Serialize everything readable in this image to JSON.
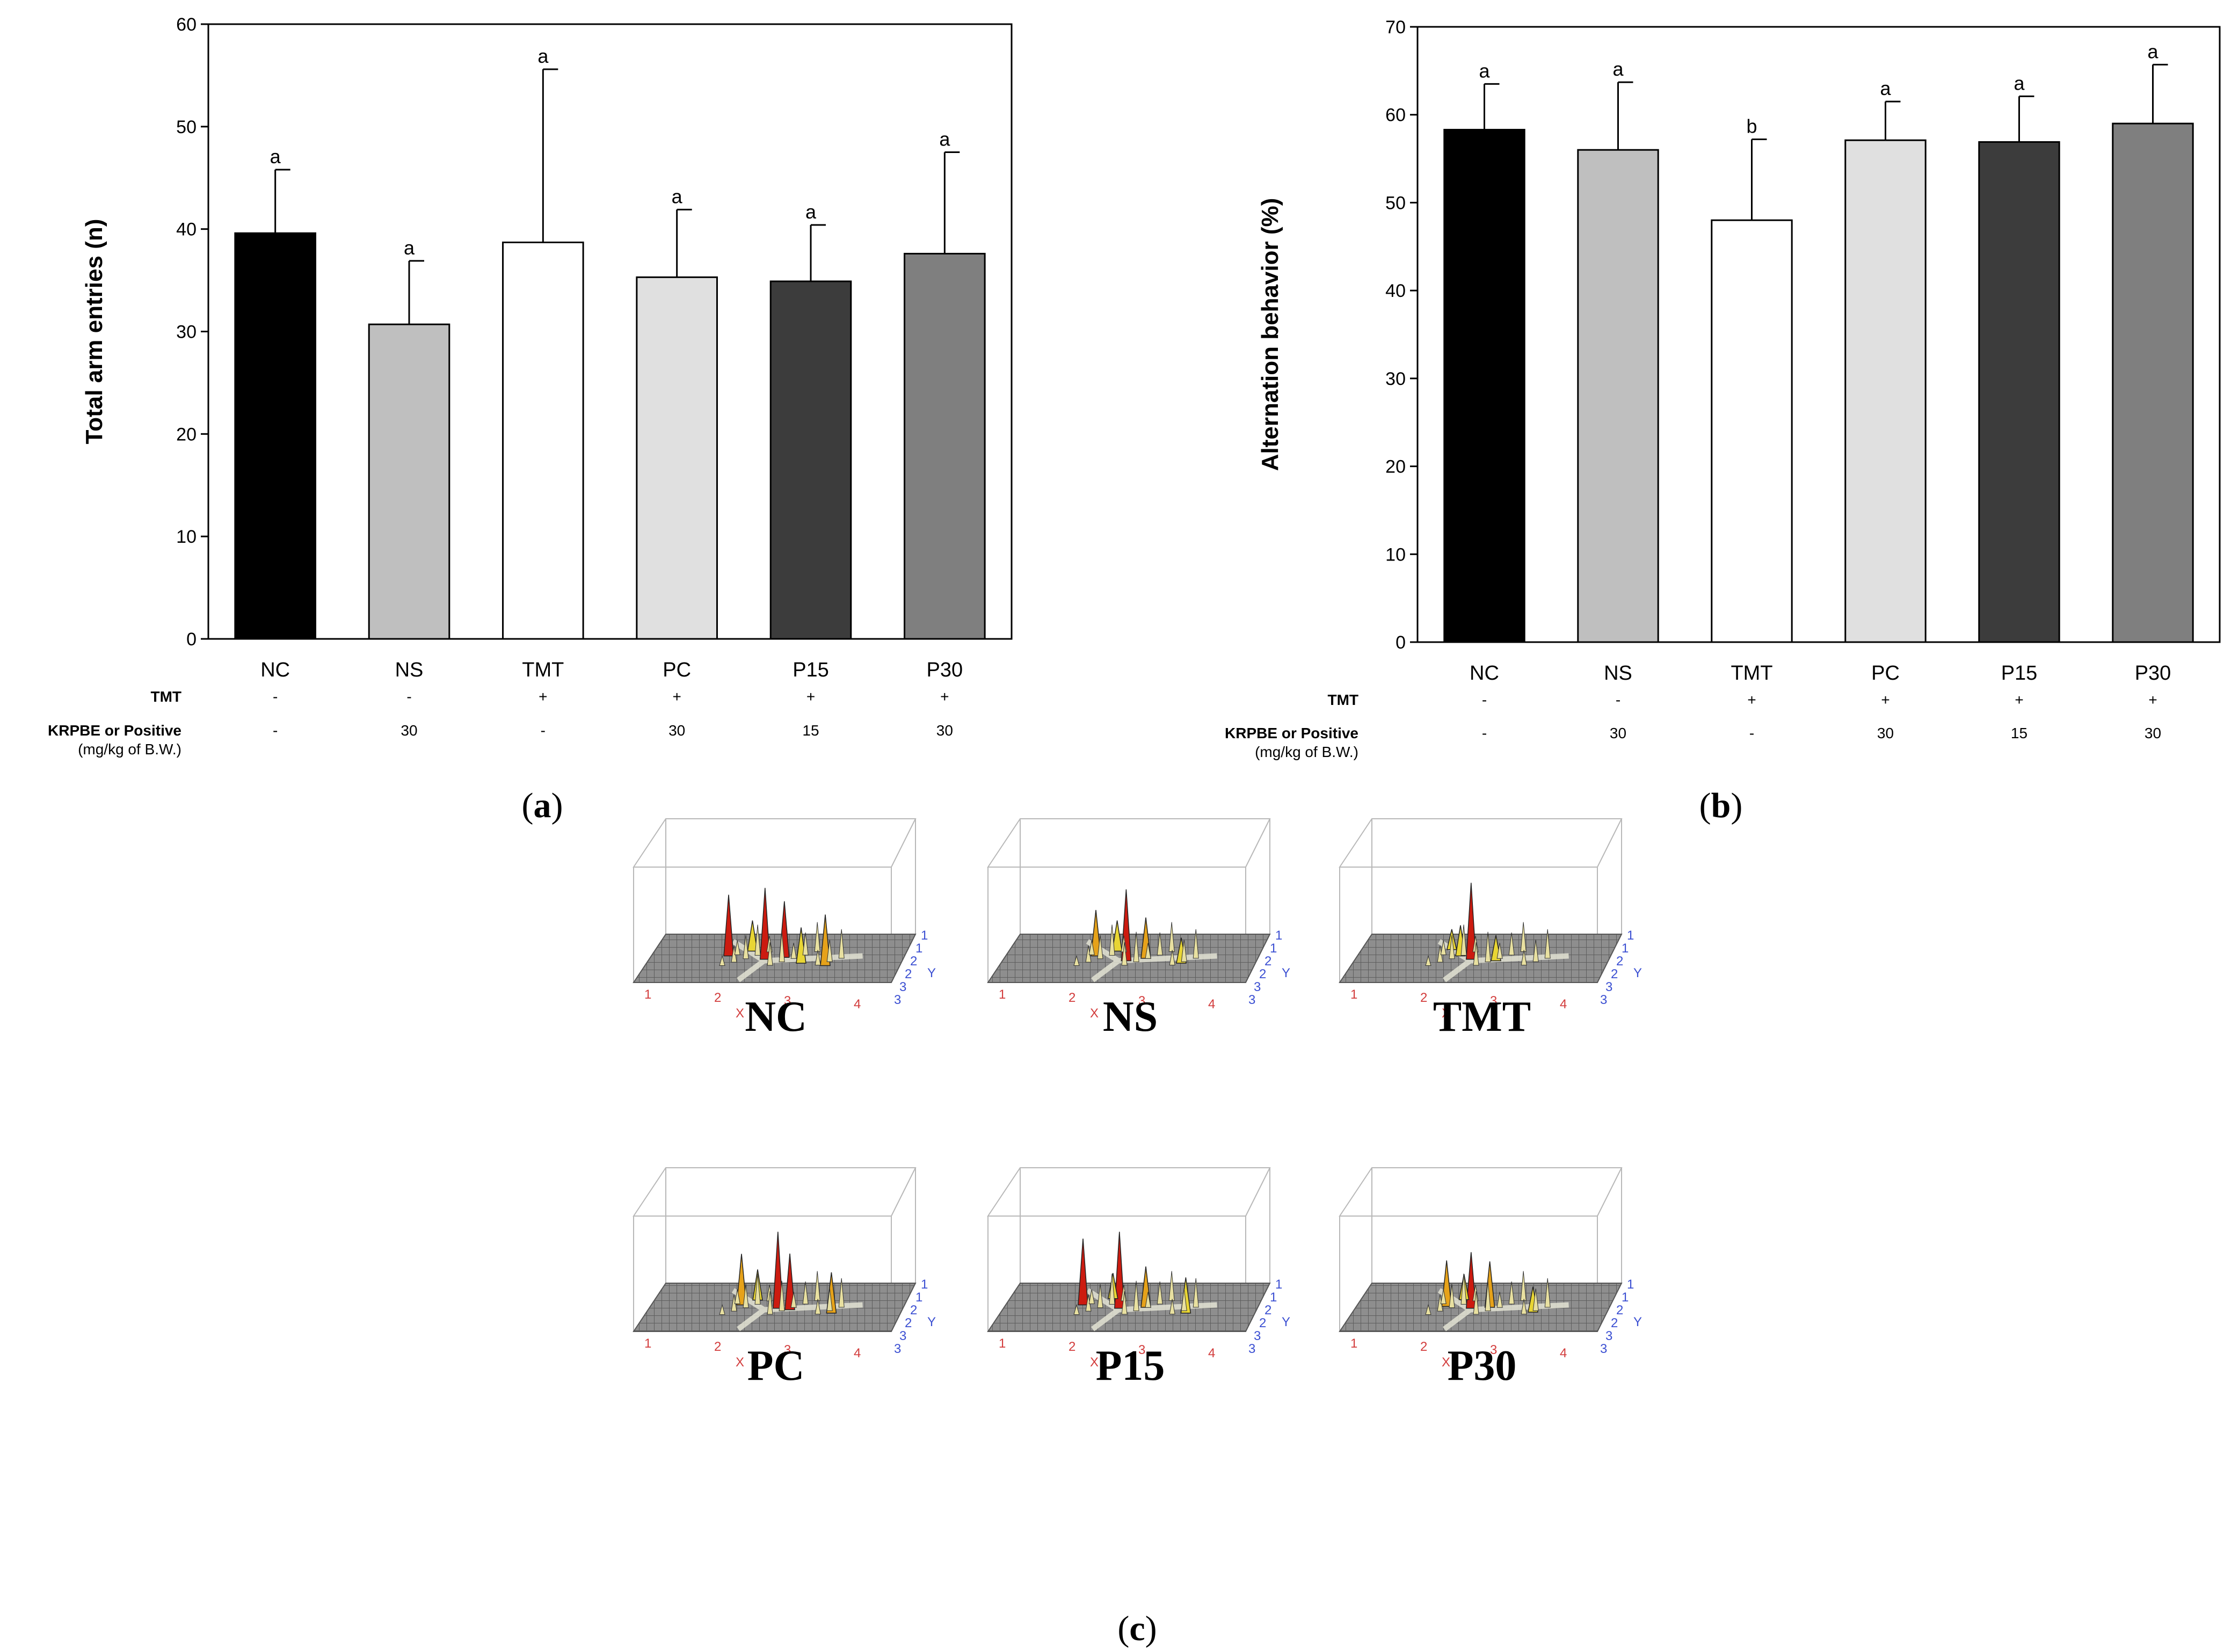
{
  "chart_data": [
    {
      "type": "bar",
      "panel_label": "a",
      "ylabel": "Total arm entries (n)",
      "ylim": [
        0,
        60
      ],
      "yticks": [
        0,
        10,
        20,
        30,
        40,
        50,
        60
      ],
      "categories": [
        "NC",
        "NS",
        "TMT",
        "PC",
        "P15",
        "P30"
      ],
      "values": [
        39.6,
        30.7,
        38.7,
        35.3,
        34.9,
        37.6
      ],
      "errors": [
        6.2,
        6.2,
        16.9,
        6.6,
        5.5,
        9.9
      ],
      "significance": [
        "a",
        "a",
        "a",
        "a",
        "a",
        "a"
      ],
      "bar_colors": [
        "#000000",
        "#bfbfbf",
        "#ffffff",
        "#e0e0e0",
        "#3c3c3c",
        "#7f7f7f"
      ],
      "condition_rows": [
        {
          "label": "TMT",
          "sublabel": "",
          "values": [
            "-",
            "-",
            "+",
            "+",
            "+",
            "+"
          ]
        },
        {
          "label": "KRPBE or Positive",
          "sublabel": "(mg/kg of B.W.)",
          "values": [
            "-",
            "30",
            "-",
            "30",
            "15",
            "30"
          ]
        }
      ]
    },
    {
      "type": "bar",
      "panel_label": "b",
      "ylabel": "Alternation behavior (%)",
      "ylim": [
        0,
        70
      ],
      "yticks": [
        0,
        10,
        20,
        30,
        40,
        50,
        60,
        70
      ],
      "categories": [
        "NC",
        "NS",
        "TMT",
        "PC",
        "P15",
        "P30"
      ],
      "values": [
        58.3,
        56.0,
        48.0,
        57.1,
        56.9,
        59.0
      ],
      "errors": [
        5.2,
        7.7,
        9.2,
        4.4,
        5.2,
        6.7
      ],
      "significance": [
        "a",
        "a",
        "b",
        "a",
        "a",
        "a"
      ],
      "bar_colors": [
        "#000000",
        "#bfbfbf",
        "#ffffff",
        "#e0e0e0",
        "#3c3c3c",
        "#7f7f7f"
      ],
      "condition_rows": [
        {
          "label": "TMT",
          "sublabel": "",
          "values": [
            "-",
            "-",
            "+",
            "+",
            "+",
            "+"
          ]
        },
        {
          "label": "KRPBE or Positive",
          "sublabel": "(mg/kg of B.W.)",
          "values": [
            "-",
            "30",
            "-",
            "30",
            "15",
            "30"
          ]
        }
      ]
    }
  ],
  "heatmaps": {
    "panel_label": "c",
    "x_axis_label": "X",
    "y_axis_label": "Y",
    "x_ticks": [
      "1",
      "2",
      "3",
      "4"
    ],
    "y_ticks": [
      "1",
      "1",
      "2",
      "2",
      "3",
      "3"
    ],
    "groups": [
      "NC",
      "NS",
      "TMT",
      "PC",
      "P15",
      "P30"
    ]
  }
}
